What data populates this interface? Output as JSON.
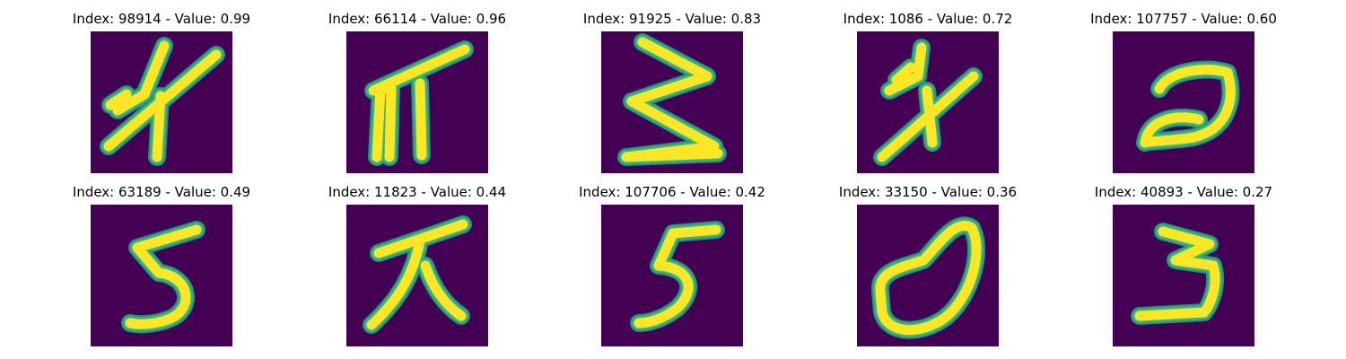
{
  "colors": {
    "background": "#440154",
    "stroke_outer": "#21918c",
    "stroke_mid": "#35b779",
    "stroke_inner": "#fde725",
    "stroke_core": "#b5de2b"
  },
  "panels": [
    {
      "title": "Index: 98914 - Value: 0.99",
      "glyph": "crossed-hatch-glyph"
    },
    {
      "title": "Index: 66114 - Value: 0.96",
      "glyph": "pi-like-glyph"
    },
    {
      "title": "Index: 91925 - Value: 0.83",
      "glyph": "zigzag-three-glyph"
    },
    {
      "title": "Index: 1086 - Value: 0.72",
      "glyph": "crossed-stick-glyph"
    },
    {
      "title": "Index: 107757 - Value: 0.60",
      "glyph": "hook-glyph"
    },
    {
      "title": "Index: 63189 - Value: 0.49",
      "glyph": "five-glyph"
    },
    {
      "title": "Index: 11823 - Value: 0.44",
      "glyph": "dai-glyph"
    },
    {
      "title": "Index: 107706 - Value: 0.42",
      "glyph": "bold-five-glyph"
    },
    {
      "title": "Index: 33150 - Value: 0.36",
      "glyph": "zero-glyph"
    },
    {
      "title": "Index: 40893 - Value: 0.27",
      "glyph": "three-glyph"
    }
  ]
}
